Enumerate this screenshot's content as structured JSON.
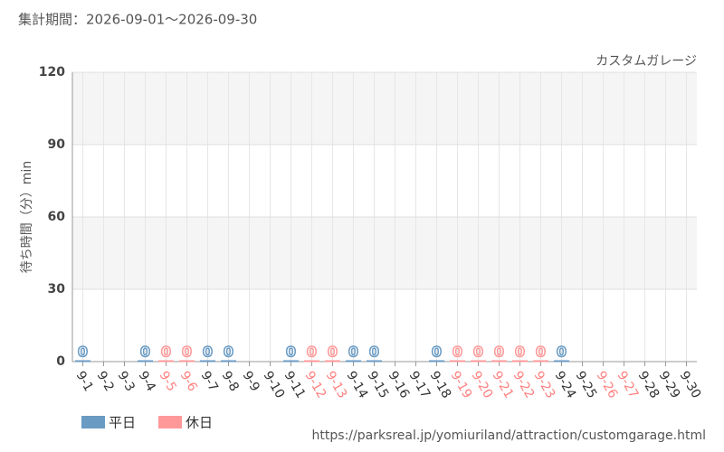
{
  "chart_data": {
    "type": "bar",
    "title": "集計期間：2026-09-01～2026-09-30",
    "annotation": "カスタムガレージ",
    "y_label": "待ち時間（分）min",
    "source": "https://parksreal.jp/yomiuriland/attraction/customgarage.html",
    "categories": [
      "9-1",
      "9-2",
      "9-3",
      "9-4",
      "9-5",
      "9-6",
      "9-7",
      "9-8",
      "9-9",
      "9-10",
      "9-11",
      "9-12",
      "9-13",
      "9-14",
      "9-15",
      "9-16",
      "9-17",
      "9-18",
      "9-19",
      "9-20",
      "9-21",
      "9-22",
      "9-23",
      "9-24",
      "9-25",
      "9-26",
      "9-27",
      "9-28",
      "9-29",
      "9-30"
    ],
    "category_colors": [
      "#333",
      "#333",
      "#333",
      "#333",
      "#ff8080",
      "#ff8080",
      "#333",
      "#333",
      "#333",
      "#333",
      "#333",
      "#ff8080",
      "#ff8080",
      "#333",
      "#333",
      "#333",
      "#333",
      "#333",
      "#ff8080",
      "#ff8080",
      "#ff8080",
      "#ff8080",
      "#ff8080",
      "#333",
      "#333",
      "#ff8080",
      "#ff8080",
      "#333",
      "#333",
      "#333"
    ],
    "series": [
      {
        "name": "平日",
        "color": "#6a9bc3",
        "values": [
          0,
          null,
          null,
          0,
          null,
          null,
          0,
          0,
          null,
          null,
          0,
          null,
          null,
          0,
          0,
          null,
          null,
          0,
          null,
          null,
          null,
          null,
          null,
          0,
          null,
          null,
          null,
          null,
          null,
          null
        ]
      },
      {
        "name": "休日",
        "color": "#ff9999",
        "values": [
          null,
          null,
          null,
          null,
          0,
          0,
          null,
          null,
          null,
          null,
          null,
          0,
          0,
          null,
          null,
          null,
          null,
          null,
          0,
          0,
          0,
          0,
          0,
          null,
          null,
          null,
          null,
          null,
          null,
          null
        ]
      }
    ],
    "ylim": [
      0,
      120
    ],
    "yticks": [
      0,
      30,
      60,
      90,
      120
    ],
    "grid": true
  }
}
